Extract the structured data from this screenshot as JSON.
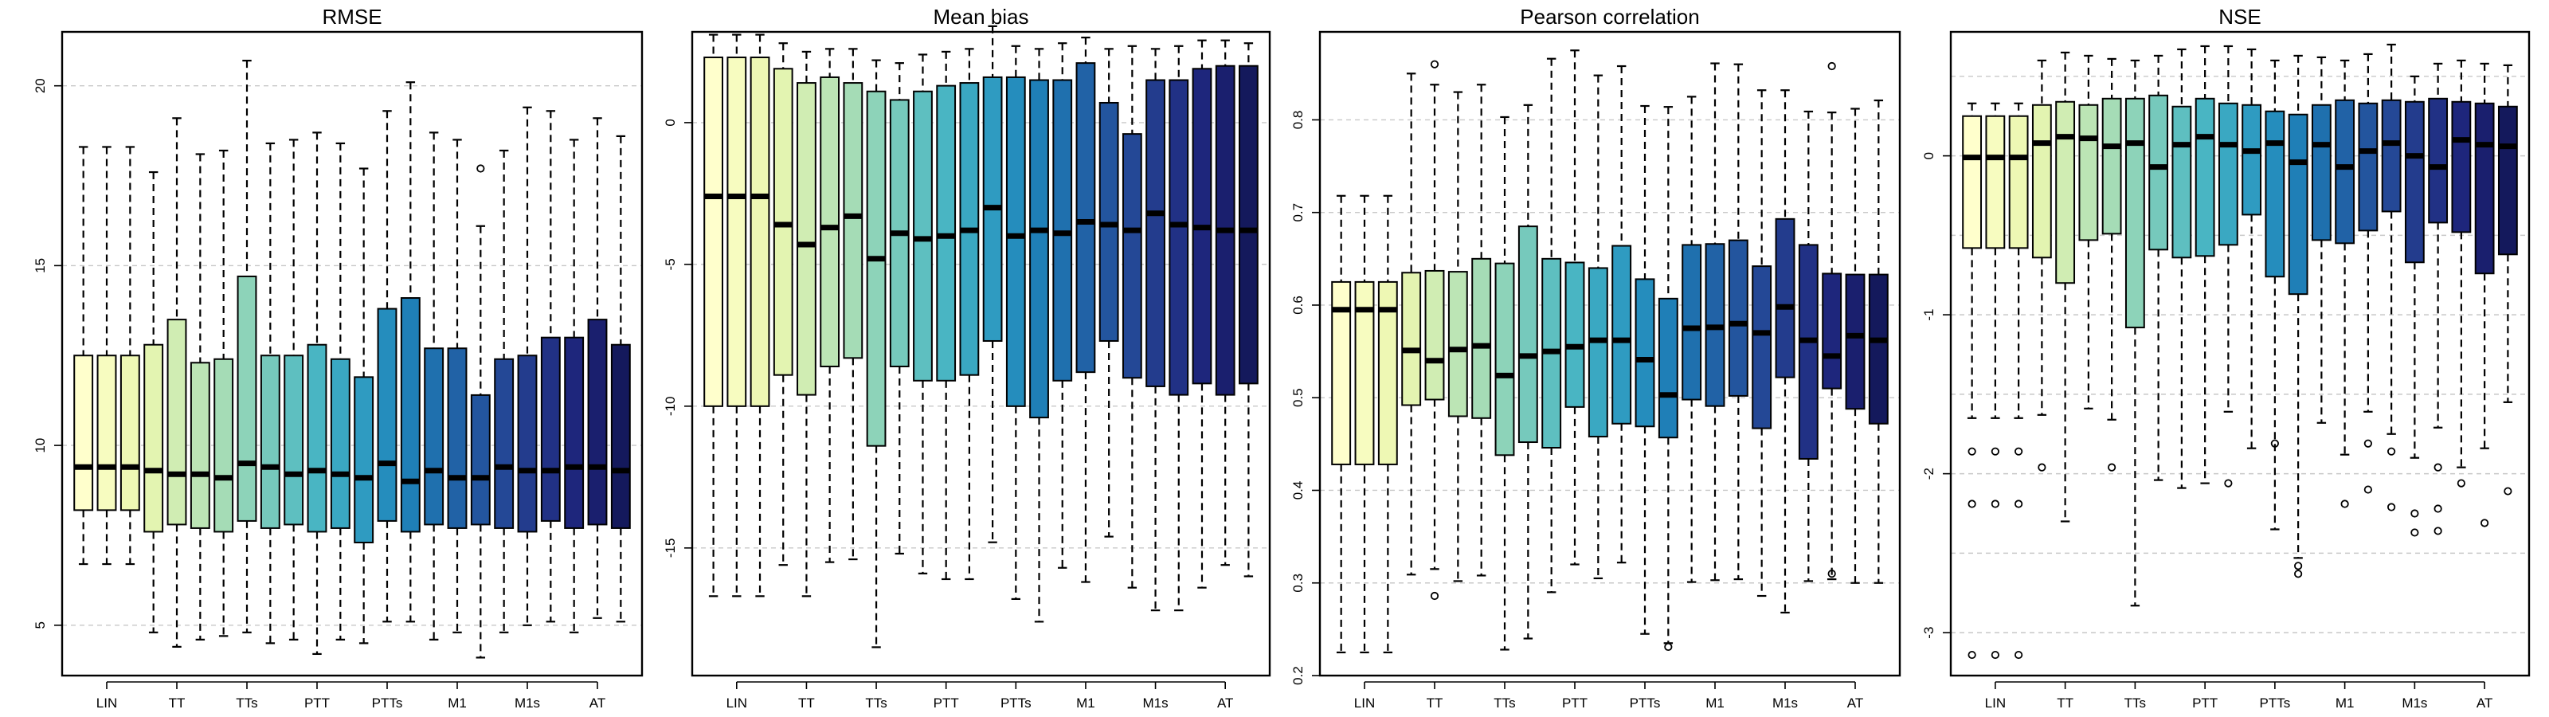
{
  "colors": [
    "#ffffcc",
    "#f7fcc0",
    "#eef8b4",
    "#e3f4b1",
    "#d0edb3",
    "#bce5b5",
    "#a5dcb6",
    "#8dd3b9",
    "#76c9bc",
    "#5ebfc0",
    "#49b5c3",
    "#3aa8c2",
    "#2f9bc1",
    "#258dbd",
    "#1f7fb7",
    "#1f70ae",
    "#2162a6",
    "#23559e",
    "#244896",
    "#233c8d",
    "#213185",
    "#1e267c",
    "#1a1f6e",
    "#14195c"
  ],
  "chart_data": [
    {
      "type": "box",
      "title": "RMSE",
      "categories": [
        "LIN",
        "TT",
        "TTs",
        "PTT",
        "PTTs",
        "M1",
        "M1s",
        "AT"
      ],
      "ylim": [
        3.6,
        21.5
      ],
      "yticks": [
        5,
        10,
        15,
        20
      ],
      "yticklabels": [
        "5",
        "10",
        "15",
        "20"
      ],
      "grid": true,
      "boxes": [
        {
          "lo": 6.7,
          "q1": 8.2,
          "med": 9.4,
          "q3": 12.5,
          "hi": 18.3,
          "out": []
        },
        {
          "lo": 6.7,
          "q1": 8.2,
          "med": 9.4,
          "q3": 12.5,
          "hi": 18.3,
          "out": []
        },
        {
          "lo": 6.7,
          "q1": 8.2,
          "med": 9.4,
          "q3": 12.5,
          "hi": 18.3,
          "out": []
        },
        {
          "lo": 4.8,
          "q1": 7.6,
          "med": 9.3,
          "q3": 12.8,
          "hi": 17.6,
          "out": []
        },
        {
          "lo": 4.4,
          "q1": 7.8,
          "med": 9.2,
          "q3": 13.5,
          "hi": 19.1,
          "out": []
        },
        {
          "lo": 4.6,
          "q1": 7.7,
          "med": 9.2,
          "q3": 12.3,
          "hi": 18.1,
          "out": []
        },
        {
          "lo": 4.7,
          "q1": 7.6,
          "med": 9.1,
          "q3": 12.4,
          "hi": 18.2,
          "out": []
        },
        {
          "lo": 4.8,
          "q1": 7.9,
          "med": 9.5,
          "q3": 14.7,
          "hi": 20.7,
          "out": []
        },
        {
          "lo": 4.5,
          "q1": 7.7,
          "med": 9.4,
          "q3": 12.5,
          "hi": 18.4,
          "out": []
        },
        {
          "lo": 4.6,
          "q1": 7.8,
          "med": 9.2,
          "q3": 12.5,
          "hi": 18.5,
          "out": []
        },
        {
          "lo": 4.2,
          "q1": 7.6,
          "med": 9.3,
          "q3": 12.8,
          "hi": 18.7,
          "out": []
        },
        {
          "lo": 4.6,
          "q1": 7.7,
          "med": 9.2,
          "q3": 12.4,
          "hi": 18.4,
          "out": []
        },
        {
          "lo": 4.5,
          "q1": 7.3,
          "med": 9.1,
          "q3": 11.9,
          "hi": 17.7,
          "out": []
        },
        {
          "lo": 5.1,
          "q1": 7.9,
          "med": 9.5,
          "q3": 13.8,
          "hi": 19.3,
          "out": []
        },
        {
          "lo": 5.1,
          "q1": 7.6,
          "med": 9.0,
          "q3": 14.1,
          "hi": 20.1,
          "out": []
        },
        {
          "lo": 4.6,
          "q1": 7.8,
          "med": 9.3,
          "q3": 12.7,
          "hi": 18.7,
          "out": []
        },
        {
          "lo": 4.8,
          "q1": 7.7,
          "med": 9.1,
          "q3": 12.7,
          "hi": 18.5,
          "out": []
        },
        {
          "lo": 4.1,
          "q1": 7.8,
          "med": 9.1,
          "q3": 11.4,
          "hi": 16.1,
          "out": [
            17.7
          ]
        },
        {
          "lo": 4.8,
          "q1": 7.7,
          "med": 9.4,
          "q3": 12.4,
          "hi": 18.2,
          "out": []
        },
        {
          "lo": 5.0,
          "q1": 7.6,
          "med": 9.3,
          "q3": 12.5,
          "hi": 19.4,
          "out": []
        },
        {
          "lo": 5.1,
          "q1": 7.9,
          "med": 9.3,
          "q3": 13.0,
          "hi": 19.3,
          "out": []
        },
        {
          "lo": 4.8,
          "q1": 7.7,
          "med": 9.4,
          "q3": 13.0,
          "hi": 18.5,
          "out": []
        },
        {
          "lo": 5.2,
          "q1": 7.8,
          "med": 9.4,
          "q3": 13.5,
          "hi": 19.1,
          "out": []
        },
        {
          "lo": 5.1,
          "q1": 7.7,
          "med": 9.3,
          "q3": 12.8,
          "hi": 18.6,
          "out": []
        }
      ]
    },
    {
      "type": "box",
      "title": "Mean bias",
      "categories": [
        "LIN",
        "TT",
        "TTs",
        "PTT",
        "PTTs",
        "M1",
        "M1s",
        "AT"
      ],
      "ylim": [
        -19.5,
        3.2
      ],
      "yticks": [
        -15,
        -10,
        -5,
        0
      ],
      "yticklabels": [
        "-15",
        "-10",
        "-5",
        "0"
      ],
      "grid": true,
      "boxes": [
        {
          "lo": -16.7,
          "q1": -10.0,
          "med": -2.6,
          "q3": 2.3,
          "hi": 3.1,
          "out": []
        },
        {
          "lo": -16.7,
          "q1": -10.0,
          "med": -2.6,
          "q3": 2.3,
          "hi": 3.1,
          "out": []
        },
        {
          "lo": -16.7,
          "q1": -10.0,
          "med": -2.6,
          "q3": 2.3,
          "hi": 3.1,
          "out": []
        },
        {
          "lo": -15.6,
          "q1": -8.9,
          "med": -3.6,
          "q3": 1.9,
          "hi": 2.8,
          "out": []
        },
        {
          "lo": -16.7,
          "q1": -9.6,
          "med": -4.3,
          "q3": 1.4,
          "hi": 2.5,
          "out": []
        },
        {
          "lo": -15.5,
          "q1": -8.6,
          "med": -3.7,
          "q3": 1.6,
          "hi": 2.6,
          "out": []
        },
        {
          "lo": -15.4,
          "q1": -8.3,
          "med": -3.3,
          "q3": 1.4,
          "hi": 2.6,
          "out": []
        },
        {
          "lo": -18.5,
          "q1": -11.4,
          "med": -4.8,
          "q3": 1.1,
          "hi": 2.2,
          "out": []
        },
        {
          "lo": -15.2,
          "q1": -8.6,
          "med": -3.9,
          "q3": 0.8,
          "hi": 2.1,
          "out": []
        },
        {
          "lo": -15.9,
          "q1": -9.1,
          "med": -4.1,
          "q3": 1.1,
          "hi": 2.4,
          "out": []
        },
        {
          "lo": -16.1,
          "q1": -9.1,
          "med": -4.0,
          "q3": 1.3,
          "hi": 2.5,
          "out": []
        },
        {
          "lo": -16.1,
          "q1": -8.9,
          "med": -3.8,
          "q3": 1.4,
          "hi": 2.6,
          "out": []
        },
        {
          "lo": -14.8,
          "q1": -7.7,
          "med": -3.0,
          "q3": 1.6,
          "hi": 3.4,
          "out": []
        },
        {
          "lo": -16.8,
          "q1": -10.0,
          "med": -4.0,
          "q3": 1.6,
          "hi": 2.7,
          "out": []
        },
        {
          "lo": -17.6,
          "q1": -10.4,
          "med": -3.8,
          "q3": 1.5,
          "hi": 2.6,
          "out": []
        },
        {
          "lo": -15.7,
          "q1": -9.1,
          "med": -3.9,
          "q3": 1.5,
          "hi": 2.8,
          "out": []
        },
        {
          "lo": -16.2,
          "q1": -8.8,
          "med": -3.5,
          "q3": 2.1,
          "hi": 3.0,
          "out": []
        },
        {
          "lo": -14.6,
          "q1": -7.7,
          "med": -3.6,
          "q3": 0.7,
          "hi": 2.6,
          "out": []
        },
        {
          "lo": -16.4,
          "q1": -9.0,
          "med": -3.8,
          "q3": -0.4,
          "hi": 2.7,
          "out": []
        },
        {
          "lo": -17.2,
          "q1": -9.3,
          "med": -3.2,
          "q3": 1.5,
          "hi": 2.6,
          "out": []
        },
        {
          "lo": -17.2,
          "q1": -9.6,
          "med": -3.6,
          "q3": 1.5,
          "hi": 2.7,
          "out": []
        },
        {
          "lo": -16.4,
          "q1": -9.2,
          "med": -3.7,
          "q3": 1.9,
          "hi": 2.9,
          "out": []
        },
        {
          "lo": -15.6,
          "q1": -9.6,
          "med": -3.8,
          "q3": 2.0,
          "hi": 2.9,
          "out": []
        },
        {
          "lo": -16.0,
          "q1": -9.2,
          "med": -3.8,
          "q3": 2.0,
          "hi": 2.8,
          "out": []
        }
      ]
    },
    {
      "type": "box",
      "title": "Pearson correlation",
      "categories": [
        "LIN",
        "TT",
        "TTs",
        "PTT",
        "PTTs",
        "M1",
        "M1s",
        "AT"
      ],
      "ylim": [
        0.2,
        0.895
      ],
      "yticks": [
        0.2,
        0.3,
        0.4,
        0.5,
        0.6,
        0.7,
        0.8
      ],
      "yticklabels": [
        "0.2",
        "0.3",
        "0.4",
        "0.5",
        "0.6",
        "0.7",
        "0.8"
      ],
      "grid": true,
      "boxes": [
        {
          "lo": 0.225,
          "q1": 0.428,
          "med": 0.595,
          "q3": 0.625,
          "hi": 0.718,
          "out": []
        },
        {
          "lo": 0.225,
          "q1": 0.428,
          "med": 0.595,
          "q3": 0.625,
          "hi": 0.718,
          "out": []
        },
        {
          "lo": 0.225,
          "q1": 0.428,
          "med": 0.595,
          "q3": 0.625,
          "hi": 0.718,
          "out": []
        },
        {
          "lo": 0.309,
          "q1": 0.492,
          "med": 0.551,
          "q3": 0.635,
          "hi": 0.85,
          "out": []
        },
        {
          "lo": 0.315,
          "q1": 0.498,
          "med": 0.54,
          "q3": 0.637,
          "hi": 0.838,
          "out": [
            0.286,
            0.86
          ]
        },
        {
          "lo": 0.302,
          "q1": 0.48,
          "med": 0.552,
          "q3": 0.636,
          "hi": 0.83,
          "out": []
        },
        {
          "lo": 0.308,
          "q1": 0.478,
          "med": 0.556,
          "q3": 0.65,
          "hi": 0.838,
          "out": []
        },
        {
          "lo": 0.228,
          "q1": 0.438,
          "med": 0.524,
          "q3": 0.645,
          "hi": 0.803,
          "out": []
        },
        {
          "lo": 0.24,
          "q1": 0.452,
          "med": 0.545,
          "q3": 0.685,
          "hi": 0.816,
          "out": []
        },
        {
          "lo": 0.29,
          "q1": 0.446,
          "med": 0.55,
          "q3": 0.65,
          "hi": 0.866,
          "out": []
        },
        {
          "lo": 0.32,
          "q1": 0.49,
          "med": 0.555,
          "q3": 0.646,
          "hi": 0.875,
          "out": []
        },
        {
          "lo": 0.305,
          "q1": 0.458,
          "med": 0.562,
          "q3": 0.64,
          "hi": 0.848,
          "out": []
        },
        {
          "lo": 0.322,
          "q1": 0.472,
          "med": 0.562,
          "q3": 0.664,
          "hi": 0.858,
          "out": []
        },
        {
          "lo": 0.245,
          "q1": 0.469,
          "med": 0.541,
          "q3": 0.628,
          "hi": 0.815,
          "out": []
        },
        {
          "lo": 0.235,
          "q1": 0.457,
          "med": 0.503,
          "q3": 0.607,
          "hi": 0.814,
          "out": [
            0.231
          ]
        },
        {
          "lo": 0.301,
          "q1": 0.498,
          "med": 0.575,
          "q3": 0.665,
          "hi": 0.825,
          "out": []
        },
        {
          "lo": 0.303,
          "q1": 0.491,
          "med": 0.576,
          "q3": 0.666,
          "hi": 0.861,
          "out": []
        },
        {
          "lo": 0.304,
          "q1": 0.502,
          "med": 0.58,
          "q3": 0.67,
          "hi": 0.86,
          "out": []
        },
        {
          "lo": 0.286,
          "q1": 0.467,
          "med": 0.57,
          "q3": 0.642,
          "hi": 0.832,
          "out": []
        },
        {
          "lo": 0.268,
          "q1": 0.522,
          "med": 0.598,
          "q3": 0.693,
          "hi": 0.832,
          "out": []
        },
        {
          "lo": 0.302,
          "q1": 0.434,
          "med": 0.562,
          "q3": 0.665,
          "hi": 0.809,
          "out": []
        },
        {
          "lo": 0.304,
          "q1": 0.51,
          "med": 0.545,
          "q3": 0.634,
          "hi": 0.808,
          "out": [
            0.31,
            0.858
          ]
        },
        {
          "lo": 0.3,
          "q1": 0.488,
          "med": 0.567,
          "q3": 0.633,
          "hi": 0.812,
          "out": []
        },
        {
          "lo": 0.3,
          "q1": 0.472,
          "med": 0.562,
          "q3": 0.633,
          "hi": 0.821,
          "out": []
        }
      ]
    },
    {
      "type": "box",
      "title": "NSE",
      "categories": [
        "LIN",
        "TT",
        "TTs",
        "PTT",
        "PTTs",
        "M1",
        "M1s",
        "AT"
      ],
      "ylim": [
        -3.27,
        0.78
      ],
      "yticks": [
        -3,
        -2,
        -1,
        0
      ],
      "yticklabels": [
        "-3",
        "-2",
        "-1",
        "0"
      ],
      "grid": true,
      "gridlines": [
        0.5,
        0,
        -0.5,
        -1,
        -1.5,
        -2,
        -2.5,
        -3
      ],
      "boxes": [
        {
          "lo": -1.65,
          "q1": -0.58,
          "med": -0.01,
          "q3": 0.25,
          "hi": 0.33,
          "out": [
            -1.86,
            -2.19,
            -3.14
          ]
        },
        {
          "lo": -1.65,
          "q1": -0.58,
          "med": -0.01,
          "q3": 0.25,
          "hi": 0.33,
          "out": [
            -1.86,
            -2.19,
            -3.14
          ]
        },
        {
          "lo": -1.65,
          "q1": -0.58,
          "med": -0.01,
          "q3": 0.25,
          "hi": 0.33,
          "out": [
            -1.86,
            -2.19,
            -3.14
          ]
        },
        {
          "lo": -1.63,
          "q1": -0.64,
          "med": 0.08,
          "q3": 0.32,
          "hi": 0.6,
          "out": [
            -1.96
          ]
        },
        {
          "lo": -2.3,
          "q1": -0.8,
          "med": 0.12,
          "q3": 0.34,
          "hi": 0.65,
          "out": []
        },
        {
          "lo": -1.59,
          "q1": -0.53,
          "med": 0.11,
          "q3": 0.32,
          "hi": 0.63,
          "out": []
        },
        {
          "lo": -1.66,
          "q1": -0.49,
          "med": 0.06,
          "q3": 0.36,
          "hi": 0.61,
          "out": [
            -1.96
          ]
        },
        {
          "lo": -2.83,
          "q1": -1.08,
          "med": 0.08,
          "q3": 0.36,
          "hi": 0.6,
          "out": []
        },
        {
          "lo": -2.04,
          "q1": -0.59,
          "med": -0.07,
          "q3": 0.38,
          "hi": 0.63,
          "out": []
        },
        {
          "lo": -2.09,
          "q1": -0.64,
          "med": 0.07,
          "q3": 0.31,
          "hi": 0.67,
          "out": []
        },
        {
          "lo": -2.06,
          "q1": -0.63,
          "med": 0.12,
          "q3": 0.36,
          "hi": 0.69,
          "out": []
        },
        {
          "lo": -1.61,
          "q1": -0.56,
          "med": 0.07,
          "q3": 0.33,
          "hi": 0.69,
          "out": [
            -2.06
          ]
        },
        {
          "lo": -1.84,
          "q1": -0.37,
          "med": 0.03,
          "q3": 0.32,
          "hi": 0.67,
          "out": []
        },
        {
          "lo": -2.35,
          "q1": -0.76,
          "med": 0.08,
          "q3": 0.28,
          "hi": 0.6,
          "out": [
            -1.81
          ]
        },
        {
          "lo": -2.53,
          "q1": -0.87,
          "med": -0.04,
          "q3": 0.26,
          "hi": 0.63,
          "out": [
            -2.58,
            -2.63
          ]
        },
        {
          "lo": -1.68,
          "q1": -0.53,
          "med": 0.07,
          "q3": 0.32,
          "hi": 0.62,
          "out": []
        },
        {
          "lo": -1.88,
          "q1": -0.55,
          "med": -0.07,
          "q3": 0.35,
          "hi": 0.6,
          "out": [
            -2.19
          ]
        },
        {
          "lo": -1.61,
          "q1": -0.47,
          "med": 0.03,
          "q3": 0.33,
          "hi": 0.64,
          "out": [
            -1.81,
            -2.1
          ]
        },
        {
          "lo": -1.75,
          "q1": -0.35,
          "med": 0.08,
          "q3": 0.35,
          "hi": 0.7,
          "out": [
            -1.86,
            -2.21
          ]
        },
        {
          "lo": -1.9,
          "q1": -0.67,
          "med": 0.0,
          "q3": 0.34,
          "hi": 0.5,
          "out": [
            -2.25,
            -2.37
          ]
        },
        {
          "lo": -1.71,
          "q1": -0.42,
          "med": -0.07,
          "q3": 0.36,
          "hi": 0.58,
          "out": [
            -1.96,
            -2.22,
            -2.36
          ]
        },
        {
          "lo": -1.96,
          "q1": -0.48,
          "med": 0.1,
          "q3": 0.34,
          "hi": 0.6,
          "out": [
            -2.06
          ]
        },
        {
          "lo": -1.84,
          "q1": -0.74,
          "med": 0.07,
          "q3": 0.33,
          "hi": 0.58,
          "out": [
            -2.31
          ]
        },
        {
          "lo": -1.55,
          "q1": -0.62,
          "med": 0.06,
          "q3": 0.31,
          "hi": 0.57,
          "out": [
            -2.11
          ]
        }
      ]
    }
  ]
}
